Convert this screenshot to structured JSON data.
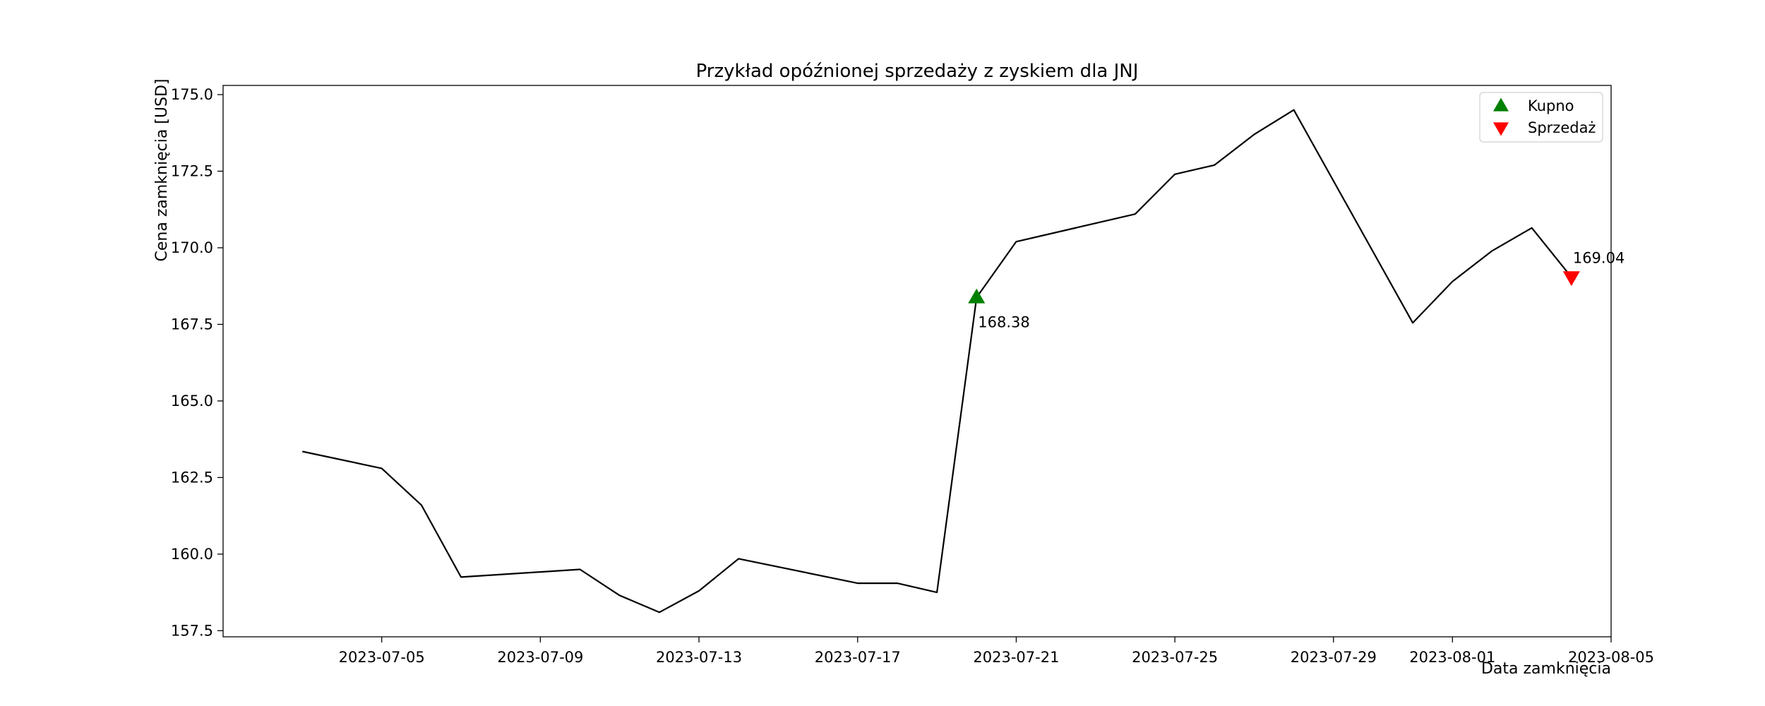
{
  "chart_data": {
    "type": "line",
    "title": "Przykład opóźnionej sprzedaży z zyskiem dla JNJ",
    "xlabel": "Data zamknięcia",
    "ylabel": "Cena zamknięcia [USD]",
    "xlim": [
      "2023-07-01",
      "2023-08-05"
    ],
    "ylim": [
      157.3,
      175.3
    ],
    "x_ticks": [
      "2023-07-05",
      "2023-07-09",
      "2023-07-13",
      "2023-07-17",
      "2023-07-21",
      "2023-07-25",
      "2023-07-29",
      "2023-08-01",
      "2023-08-05"
    ],
    "y_ticks": [
      157.5,
      160.0,
      162.5,
      165.0,
      167.5,
      170.0,
      172.5,
      175.0
    ],
    "grid": false,
    "series": [
      {
        "x": [
          "2023-07-03",
          "2023-07-05",
          "2023-07-06",
          "2023-07-07",
          "2023-07-10",
          "2023-07-11",
          "2023-07-12",
          "2023-07-13",
          "2023-07-14",
          "2023-07-17",
          "2023-07-18",
          "2023-07-19",
          "2023-07-20",
          "2023-07-21",
          "2023-07-24",
          "2023-07-25",
          "2023-07-26",
          "2023-07-27",
          "2023-07-28",
          "2023-07-31",
          "2023-08-01",
          "2023-08-02",
          "2023-08-03",
          "2023-08-04"
        ],
        "values": [
          163.35,
          162.8,
          161.6,
          159.25,
          159.5,
          158.65,
          158.1,
          158.8,
          159.85,
          159.05,
          159.05,
          158.75,
          168.38,
          170.2,
          171.1,
          172.4,
          172.7,
          173.7,
          174.5,
          167.55,
          168.9,
          169.9,
          170.65,
          169.04
        ],
        "color": "#000000"
      }
    ],
    "markers": [
      {
        "name": "Kupno",
        "x": "2023-07-20",
        "y": 168.38,
        "label": "168.38",
        "shape": "triangle-up",
        "color": "#008000"
      },
      {
        "name": "Sprzedaż",
        "x": "2023-08-04",
        "y": 169.04,
        "label": "169.04",
        "shape": "triangle-down",
        "color": "#ff0000"
      }
    ],
    "legend": {
      "placement": "top-right",
      "entries": [
        {
          "label": "Kupno",
          "shape": "triangle-up",
          "color": "#008000"
        },
        {
          "label": "Sprzedaż",
          "shape": "triangle-down",
          "color": "#ff0000"
        }
      ]
    }
  }
}
